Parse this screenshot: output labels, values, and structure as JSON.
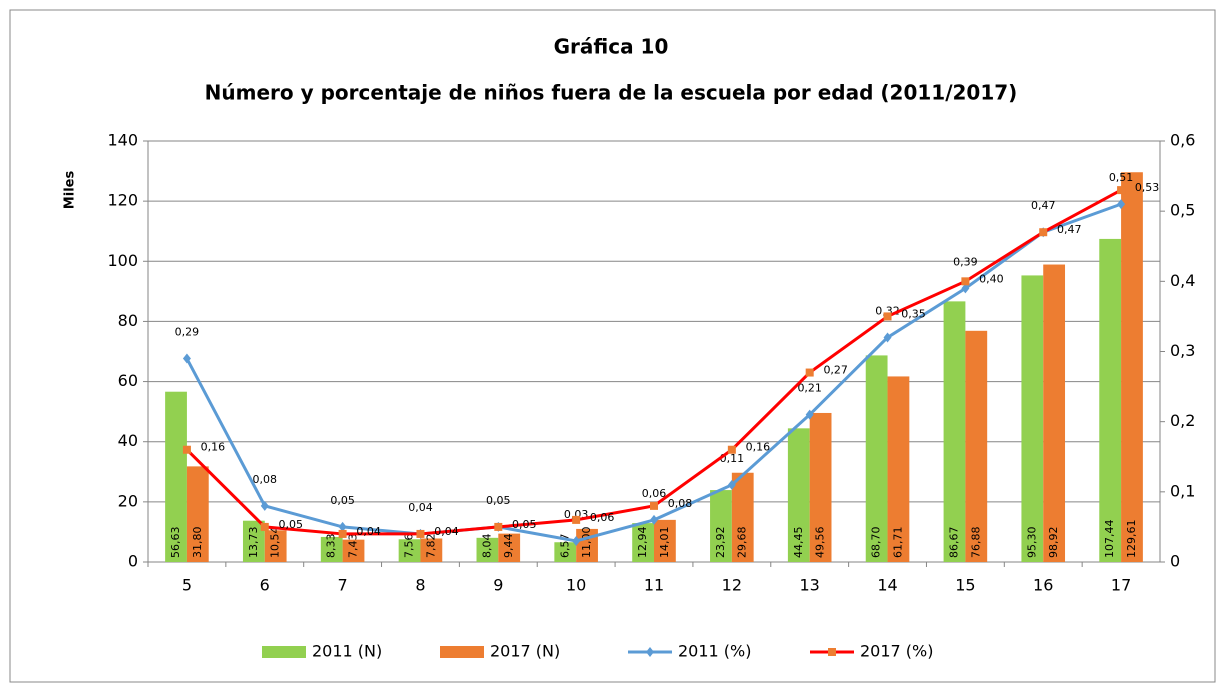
{
  "chart_data": {
    "type": "bar",
    "title": "Gráfica 10",
    "subtitle": "Número y porcentaje de niños fuera de la escuela por edad (2011/2017)",
    "y_label": "Miles",
    "categories": [
      "5",
      "6",
      "7",
      "8",
      "9",
      "10",
      "11",
      "12",
      "13",
      "14",
      "15",
      "16",
      "17"
    ],
    "ylim": [
      0,
      140
    ],
    "yticks": [
      0,
      20,
      40,
      60,
      80,
      100,
      120,
      140
    ],
    "y2lim": [
      0,
      0.6
    ],
    "y2ticks": [
      0,
      {
        "value": 0.1,
        "label": "0,1"
      },
      {
        "value": 0.2,
        "label": "0,2"
      },
      {
        "value": 0.3,
        "label": "0,3"
      },
      {
        "value": 0.4,
        "label": "0,4"
      },
      {
        "value": 0.5,
        "label": "0,5"
      },
      {
        "value": 0.6,
        "label": "0,6"
      }
    ],
    "grid": true,
    "legend": "bottom",
    "series": [
      {
        "name": "2011 (N)",
        "type": "bar",
        "color": "#92d050",
        "values": [
          56.63,
          13.73,
          8.33,
          7.56,
          8.04,
          6.57,
          12.94,
          23.92,
          44.45,
          68.7,
          86.67,
          95.3,
          107.44
        ],
        "value_labels": [
          "56,63",
          "13,73",
          "8,33",
          "7,56",
          "8,04",
          "6,57",
          "12,94",
          "23,92",
          "44,45",
          "68,70",
          "86,67",
          "95,30",
          "107,44"
        ]
      },
      {
        "name": "2017 (N)",
        "type": "bar",
        "color": "#ed7d31",
        "values": [
          31.8,
          10.54,
          7.43,
          7.82,
          9.44,
          11.0,
          14.01,
          29.68,
          49.56,
          61.71,
          76.88,
          98.92,
          129.61
        ],
        "value_labels": [
          "31,80",
          "10,54",
          "7,43",
          "7,82",
          "9,44",
          "11,00",
          "14,01",
          "29,68",
          "49,56",
          "61,71",
          "76,88",
          "98,92",
          "129,61"
        ]
      },
      {
        "name": "2011 (%)",
        "type": "line",
        "axis": "y2",
        "color": "#5b9bd5",
        "values": [
          0.29,
          0.08,
          0.05,
          0.04,
          0.05,
          0.03,
          0.06,
          0.11,
          0.21,
          0.32,
          0.39,
          0.47,
          0.51
        ],
        "value_labels": [
          "0,29",
          "0,08",
          "0,05",
          "0,04",
          "0,05",
          "0,03",
          "0,06",
          "0,11",
          "0,21",
          "0,32",
          "0,39",
          "0,47",
          "0,51"
        ]
      },
      {
        "name": "2017 (%)",
        "type": "line",
        "axis": "y2",
        "color": "#ff0000",
        "values": [
          0.16,
          0.05,
          0.04,
          0.04,
          0.05,
          0.06,
          0.08,
          0.16,
          0.27,
          0.35,
          0.4,
          0.47,
          0.53
        ],
        "value_labels": [
          "0,16",
          "0,05",
          "0,04",
          "0,04",
          "0,05",
          "0,06",
          "0,08",
          "0,16",
          "0,27",
          "0,35",
          "0,40",
          "0,47",
          "0,53"
        ]
      }
    ]
  }
}
